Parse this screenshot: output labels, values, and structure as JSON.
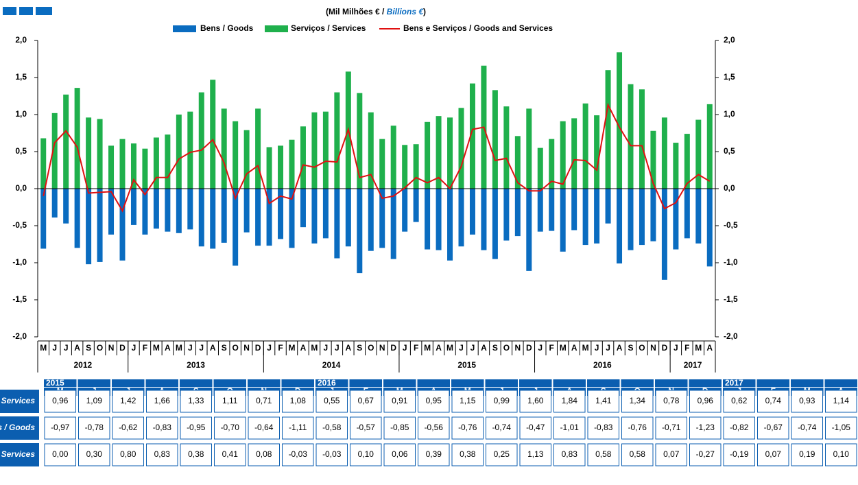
{
  "chart_data": {
    "type": "bar",
    "title": "(Mil Milhões € / ",
    "title_en": "Billions €",
    "title_close": ")",
    "categories": [
      "M",
      "J",
      "J",
      "A",
      "S",
      "O",
      "N",
      "D",
      "J",
      "F",
      "M",
      "A",
      "M",
      "J",
      "J",
      "A",
      "S",
      "O",
      "N",
      "D",
      "J",
      "F",
      "M",
      "A",
      "M",
      "J",
      "J",
      "A",
      "S",
      "O",
      "N",
      "D",
      "J",
      "F",
      "M",
      "A",
      "M",
      "J",
      "J",
      "A",
      "S",
      "O",
      "N",
      "D",
      "J",
      "F",
      "M",
      "A",
      "M",
      "J",
      "J",
      "A",
      "S",
      "O",
      "N",
      "D",
      "J",
      "F",
      "M",
      "A"
    ],
    "years": [
      {
        "label": "2012",
        "span": 8
      },
      {
        "label": "2013",
        "span": 12
      },
      {
        "label": "2014",
        "span": 12
      },
      {
        "label": "2015",
        "span": 12
      },
      {
        "label": "2016",
        "span": 12
      },
      {
        "label": "2017",
        "span": 4
      }
    ],
    "series": [
      {
        "name": "Bens / Goods",
        "color": "#0a6cc0",
        "values": [
          -0.81,
          -0.39,
          -0.47,
          -0.8,
          -1.02,
          -0.99,
          -0.62,
          -0.97,
          -0.49,
          -0.62,
          -0.54,
          -0.58,
          -0.6,
          -0.55,
          -0.78,
          -0.81,
          -0.73,
          -1.04,
          -0.59,
          -0.77,
          -0.77,
          -0.68,
          -0.8,
          -0.52,
          -0.74,
          -0.67,
          -0.94,
          -0.78,
          -1.14,
          -0.84,
          -0.8,
          -0.95,
          -0.58,
          -0.45,
          -0.82,
          -0.83,
          -0.97,
          -0.78,
          -0.62,
          -0.83,
          -0.95,
          -0.7,
          -0.64,
          -1.11,
          -0.58,
          -0.57,
          -0.85,
          -0.56,
          -0.76,
          -0.74,
          -0.47,
          -1.01,
          -0.83,
          -0.76,
          -0.71,
          -1.23,
          -0.82,
          -0.67,
          -0.74,
          -1.05
        ]
      },
      {
        "name": "Serviços / Services",
        "color": "#1fb04c",
        "values": [
          0.68,
          1.02,
          1.27,
          1.36,
          0.96,
          0.94,
          0.58,
          0.67,
          0.61,
          0.54,
          0.69,
          0.73,
          1.0,
          1.04,
          1.3,
          1.47,
          1.08,
          0.91,
          0.79,
          1.08,
          0.56,
          0.58,
          0.66,
          0.84,
          1.03,
          1.04,
          1.3,
          1.58,
          1.29,
          1.03,
          0.67,
          0.85,
          0.59,
          0.6,
          0.9,
          0.98,
          0.96,
          1.09,
          1.42,
          1.66,
          1.33,
          1.11,
          0.71,
          1.08,
          0.55,
          0.67,
          0.91,
          0.95,
          1.15,
          0.99,
          1.6,
          1.84,
          1.41,
          1.34,
          0.78,
          0.96,
          0.62,
          0.74,
          0.93,
          1.14
        ]
      },
      {
        "name": "Bens e Serviços  / Goods and Services",
        "color": "#e01010",
        "type": "line",
        "values": [
          -0.1,
          0.62,
          0.78,
          0.56,
          -0.06,
          -0.05,
          -0.04,
          -0.3,
          0.12,
          -0.08,
          0.15,
          0.15,
          0.4,
          0.49,
          0.52,
          0.66,
          0.35,
          -0.13,
          0.2,
          0.31,
          -0.2,
          -0.1,
          -0.14,
          0.32,
          0.29,
          0.37,
          0.36,
          0.8,
          0.15,
          0.19,
          -0.13,
          -0.1,
          0.01,
          0.15,
          0.08,
          0.15,
          0.0,
          0.3,
          0.8,
          0.83,
          0.38,
          0.41,
          0.08,
          -0.03,
          -0.03,
          0.1,
          0.06,
          0.39,
          0.38,
          0.25,
          1.13,
          0.83,
          0.58,
          0.58,
          0.07,
          -0.27,
          -0.19,
          0.07,
          0.19,
          0.1
        ]
      }
    ],
    "ylim": [
      -2,
      2
    ],
    "yticks": [
      {
        "value": -2,
        "label": "-2,0"
      },
      {
        "value": -1.5,
        "label": "-1,5"
      },
      {
        "value": -1,
        "label": "-1,0"
      },
      {
        "value": -0.5,
        "label": "-0,5"
      },
      {
        "value": 0,
        "label": "0,0"
      },
      {
        "value": 0.5,
        "label": "0,5"
      },
      {
        "value": 1,
        "label": "1,0"
      },
      {
        "value": 1.5,
        "label": "1,5"
      },
      {
        "value": 2,
        "label": "2,0"
      }
    ],
    "y2lim": [
      -2,
      2
    ],
    "y2ticks": [
      {
        "value": -2,
        "label": "-2,0"
      },
      {
        "value": -1.5,
        "label": "-1,5"
      },
      {
        "value": -1,
        "label": "-1,0"
      },
      {
        "value": -0.5,
        "label": "-0,5"
      },
      {
        "value": 0,
        "label": "0,0"
      },
      {
        "value": 0.5,
        "label": "0,5"
      },
      {
        "value": 1,
        "label": "1,0"
      },
      {
        "value": 1.5,
        "label": "1,5"
      },
      {
        "value": 2,
        "label": "2,0"
      }
    ]
  },
  "table": {
    "years": [
      "2015",
      null,
      null,
      null,
      null,
      null,
      null,
      null,
      "2016",
      null,
      null,
      null,
      null,
      null,
      null,
      null,
      null,
      null,
      null,
      null,
      "2017",
      null,
      null,
      null
    ],
    "months": [
      "M",
      "J",
      "J",
      "A",
      "S",
      "O",
      "N",
      "D",
      "J",
      "F",
      "M",
      "A",
      "M",
      "J",
      "J",
      "A",
      "S",
      "O",
      "N",
      "D",
      "J",
      "F",
      "M",
      "A"
    ],
    "rows": [
      {
        "label": "Serviços / Services",
        "values": [
          "0,96",
          "1,09",
          "1,42",
          "1,66",
          "1,33",
          "1,11",
          "0,71",
          "1,08",
          "0,55",
          "0,67",
          "0,91",
          "0,95",
          "1,15",
          "0,99",
          "1,60",
          "1,84",
          "1,41",
          "1,34",
          "0,78",
          "0,96",
          "0,62",
          "0,74",
          "0,93",
          "1,14"
        ]
      },
      {
        "label": "Bens / Goods",
        "values": [
          "-0,97",
          "-0,78",
          "-0,62",
          "-0,83",
          "-0,95",
          "-0,70",
          "-0,64",
          "-1,11",
          "-0,58",
          "-0,57",
          "-0,85",
          "-0,56",
          "-0,76",
          "-0,74",
          "-0,47",
          "-1,01",
          "-0,83",
          "-0,76",
          "-0,71",
          "-1,23",
          "-0,82",
          "-0,67",
          "-0,74",
          "-1,05"
        ]
      },
      {
        "label": "Bens e Serviços / Goods and Services",
        "values": [
          "0,00",
          "0,30",
          "0,80",
          "0,83",
          "0,38",
          "0,41",
          "0,08",
          "-0,03",
          "-0,03",
          "0,10",
          "0,06",
          "0,39",
          "0,38",
          "0,25",
          "1,13",
          "0,83",
          "0,58",
          "0,58",
          "0,07",
          "-0,27",
          "-0,19",
          "0,07",
          "0,19",
          "0,10"
        ]
      }
    ]
  }
}
